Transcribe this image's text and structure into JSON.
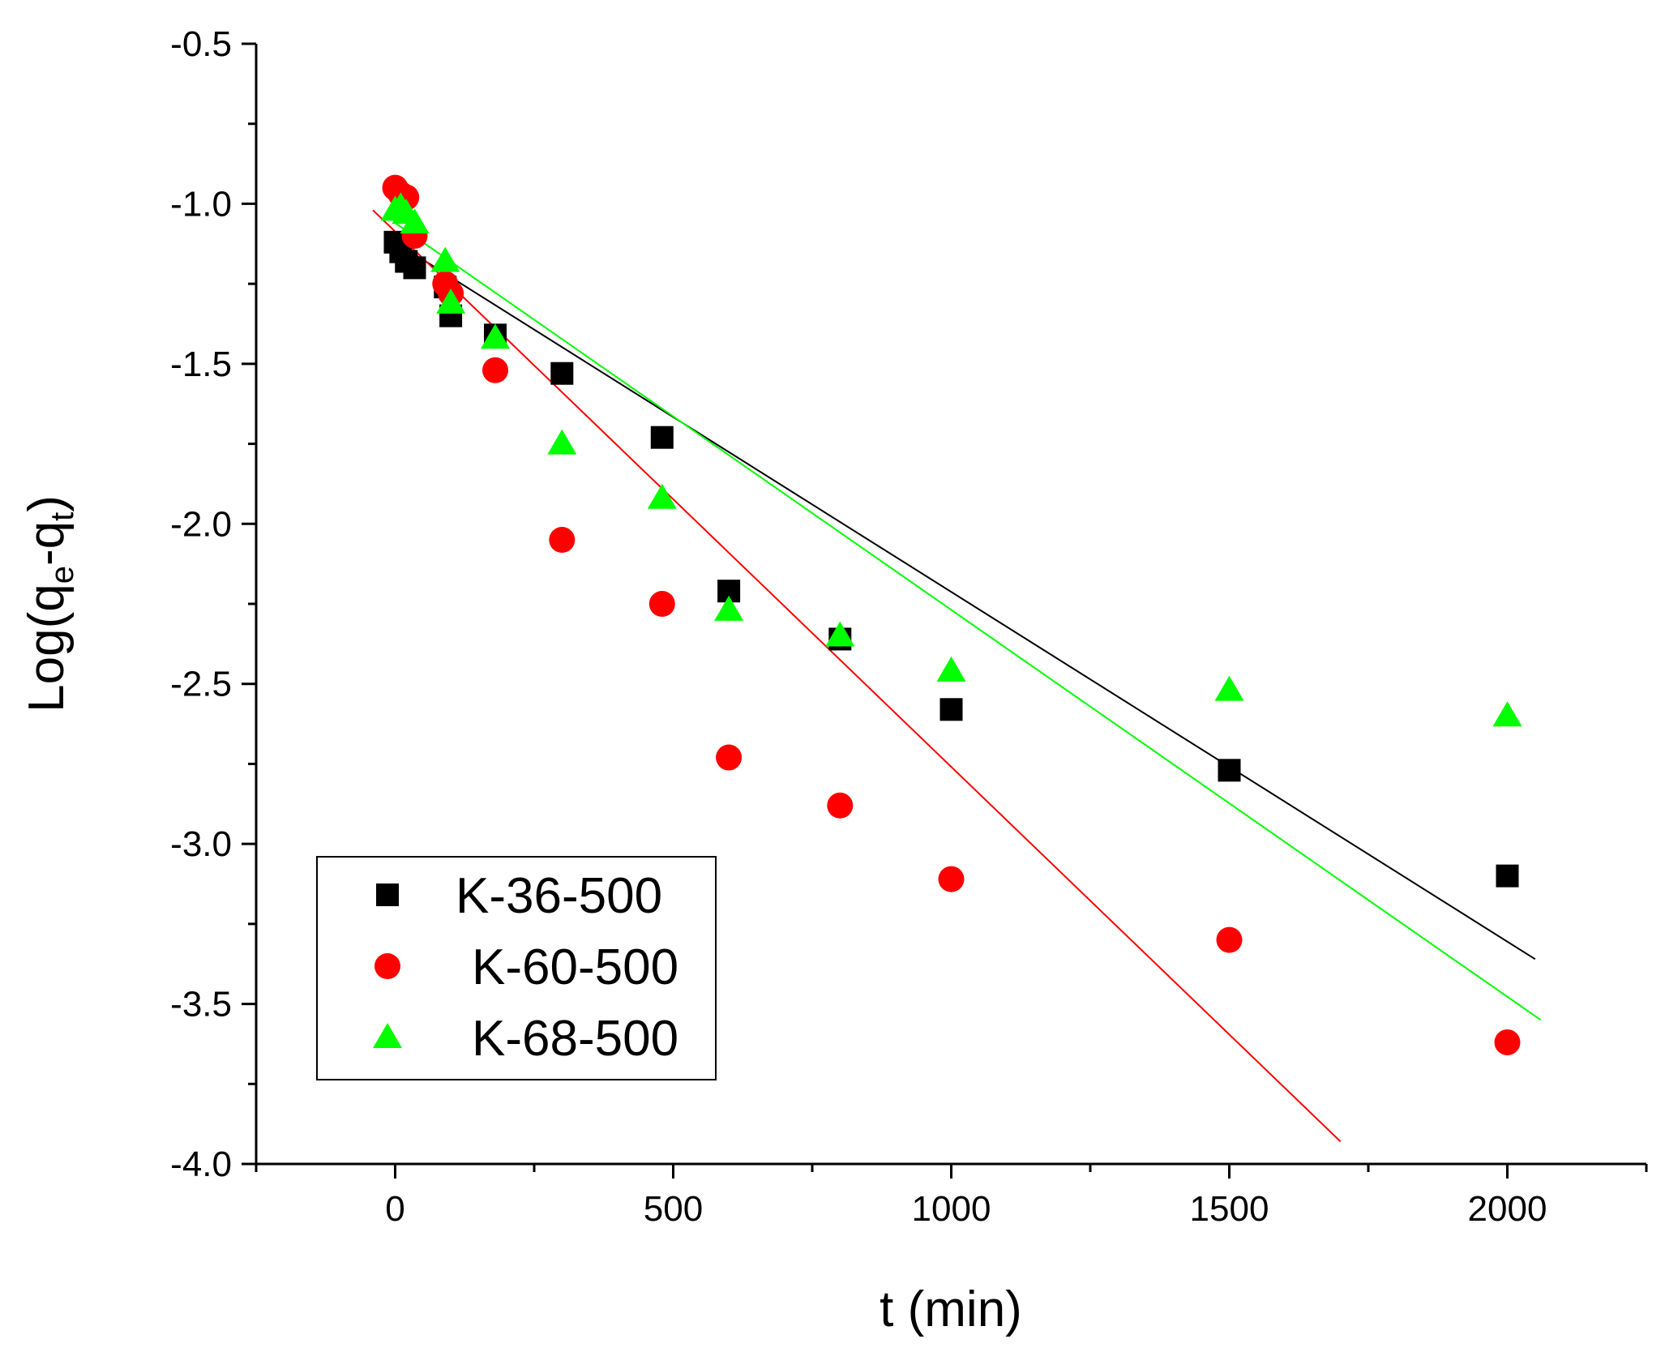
{
  "chart_data": {
    "type": "scatter",
    "title": "",
    "xlabel": "t (min)",
    "ylabel_parts": [
      "Log(q",
      "e",
      "-q",
      "t",
      ")"
    ],
    "xlim": [
      -250,
      2250
    ],
    "ylim": [
      -4.0,
      -0.5
    ],
    "xticks": [
      0,
      500,
      1000,
      1500,
      2000
    ],
    "xtick_labels": [
      "0",
      "500",
      "1000",
      "1500",
      "2000"
    ],
    "yticks": [
      -0.5,
      -1.0,
      -1.5,
      -2.0,
      -2.5,
      -3.0,
      -3.5,
      -4.0
    ],
    "ytick_labels": [
      "-0.5",
      "-1.0",
      "-1.5",
      "-2.0",
      "-2.5",
      "-3.0",
      "-3.5",
      "-4.0"
    ],
    "grid": false,
    "legend_position": "bottom-left",
    "series": [
      {
        "name": "K-36-500",
        "marker": "square",
        "color": "#000000",
        "x": [
          0,
          10,
          20,
          35,
          90,
          100,
          180,
          300,
          480,
          600,
          800,
          1000,
          1500,
          2000
        ],
        "y": [
          -1.12,
          -1.15,
          -1.18,
          -1.2,
          -1.26,
          -1.35,
          -1.41,
          -1.53,
          -1.73,
          -2.21,
          -2.36,
          -2.58,
          -2.77,
          -3.1
        ],
        "fit": {
          "x": [
            0,
            2050
          ],
          "y": [
            -1.12,
            -3.36
          ]
        }
      },
      {
        "name": "K-60-500",
        "marker": "circle",
        "color": "#ff0000",
        "x": [
          0,
          10,
          20,
          35,
          90,
          100,
          180,
          300,
          480,
          600,
          800,
          1000,
          1500,
          2000
        ],
        "y": [
          -0.95,
          -0.97,
          -0.98,
          -1.1,
          -1.25,
          -1.28,
          -1.52,
          -2.05,
          -2.25,
          -2.73,
          -2.88,
          -3.11,
          -3.3,
          -3.62
        ],
        "fit": {
          "x": [
            -40,
            1700
          ],
          "y": [
            -1.02,
            -3.93
          ]
        }
      },
      {
        "name": "K-68-500",
        "marker": "triangle",
        "color": "#00ff00",
        "x": [
          0,
          10,
          20,
          35,
          90,
          100,
          180,
          300,
          480,
          600,
          800,
          1000,
          1500,
          2000
        ],
        "y": [
          -1.02,
          -1.01,
          -1.03,
          -1.06,
          -1.18,
          -1.31,
          -1.42,
          -1.75,
          -1.92,
          -2.27,
          -2.35,
          -2.46,
          -2.52,
          -2.6
        ],
        "fit": {
          "x": [
            0,
            2060
          ],
          "y": [
            -1.06,
            -3.55
          ]
        }
      }
    ]
  }
}
